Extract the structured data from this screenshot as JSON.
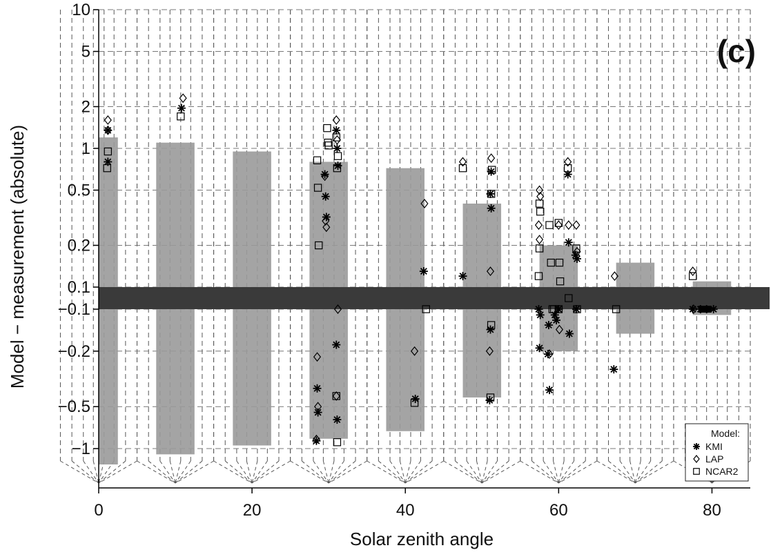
{
  "chart_data": {
    "type": "scatter",
    "panel_label": "(c)",
    "xlabel": "Solar zenith angle",
    "ylabel": "Model − measurement (absolute)",
    "x_range": [
      0,
      85
    ],
    "x_ticks": [
      0,
      20,
      40,
      60,
      80
    ],
    "x_tick_labels": [
      "0",
      "20",
      "40",
      "60",
      "80"
    ],
    "y_scale": "symmetric-log (positive values on top, negative values below; gap between -0.1 and 0.1)",
    "y_ticks_pos": [
      {
        "value": 10,
        "label": "10"
      },
      {
        "value": 5,
        "label": "5"
      },
      {
        "value": 2,
        "label": "2"
      },
      {
        "value": 1,
        "label": "1"
      },
      {
        "value": 0.5,
        "label": "0.5"
      },
      {
        "value": 0.2,
        "label": "0.2"
      },
      {
        "value": 0.1,
        "label": "0.1"
      }
    ],
    "y_ticks_neg": [
      {
        "value": -0.1,
        "label": "−0.1"
      },
      {
        "value": -0.2,
        "label": "−0.2"
      },
      {
        "value": -0.5,
        "label": "−0.5"
      },
      {
        "value": -1,
        "label": "−1"
      }
    ],
    "grid": true,
    "legend": {
      "title": "Model:",
      "placement": "bottom-right",
      "entries": [
        {
          "name": "KMI",
          "marker": "asterisk"
        },
        {
          "name": "LAP",
          "marker": "diamond"
        },
        {
          "name": "NCAR2",
          "marker": "square"
        }
      ]
    },
    "uncertainty_bands": [
      {
        "center": 0,
        "x0": 0,
        "x1": 2.5,
        "pos_top": 1.2,
        "neg_bottom": -1.3
      },
      {
        "center": 10,
        "x0": 7.5,
        "x1": 12.5,
        "pos_top": 1.1,
        "neg_bottom": -1.1
      },
      {
        "center": 20,
        "x0": 17.5,
        "x1": 22.5,
        "pos_top": 0.95,
        "neg_bottom": -0.95
      },
      {
        "center": 30,
        "x0": 27.5,
        "x1": 32.5,
        "pos_top": 0.8,
        "neg_bottom": -0.85
      },
      {
        "center": 40,
        "x0": 37.5,
        "x1": 42.5,
        "pos_top": 0.72,
        "neg_bottom": -0.75
      },
      {
        "center": 50,
        "x0": 47.5,
        "x1": 52.5,
        "pos_top": 0.4,
        "neg_bottom": -0.43
      },
      {
        "center": 60,
        "x0": 57.5,
        "x1": 62.5,
        "pos_top": 0.2,
        "neg_bottom": -0.2
      },
      {
        "center": 70,
        "x0": 67.5,
        "x1": 72.5,
        "pos_top": 0.15,
        "neg_bottom": -0.15
      },
      {
        "center": 80,
        "x0": 77.5,
        "x1": 82.5,
        "pos_top": 0.11,
        "neg_bottom": -0.11
      }
    ],
    "dashed_groups": [
      0,
      10,
      20,
      30,
      40,
      50,
      60,
      70,
      80
    ],
    "series": [
      {
        "name": "KMI",
        "marker": "asterisk",
        "points": [
          [
            1.2,
            1.35
          ],
          [
            1.2,
            0.8
          ],
          [
            10.8,
            1.95
          ],
          [
            28.5,
            -0.37
          ],
          [
            28.6,
            -0.55
          ],
          [
            28.4,
            -0.88
          ],
          [
            29.5,
            0.65
          ],
          [
            29.6,
            0.45
          ],
          [
            29.7,
            0.32
          ],
          [
            31.0,
            1.35
          ],
          [
            31.1,
            1.0
          ],
          [
            31.2,
            0.75
          ],
          [
            31.0,
            -0.18
          ],
          [
            31.1,
            -0.62
          ],
          [
            42.4,
            0.13
          ],
          [
            41.3,
            -0.44
          ],
          [
            47.5,
            0.12
          ],
          [
            51.2,
            0.68
          ],
          [
            51.1,
            0.47
          ],
          [
            51.2,
            0.37
          ],
          [
            51.1,
            -0.14
          ],
          [
            51.0,
            -0.45
          ],
          [
            57.4,
            -0.1
          ],
          [
            57.6,
            -0.11
          ],
          [
            57.5,
            -0.19
          ],
          [
            58.6,
            -0.21
          ],
          [
            58.7,
            -0.13
          ],
          [
            58.8,
            -0.38
          ],
          [
            59.5,
            -0.11
          ],
          [
            59.7,
            -0.12
          ],
          [
            60.0,
            -0.1
          ],
          [
            61.2,
            0.65
          ],
          [
            61.3,
            0.21
          ],
          [
            61.4,
            -0.15
          ],
          [
            62.2,
            0.17
          ],
          [
            62.3,
            -0.1
          ],
          [
            62.4,
            0.16
          ],
          [
            67.2,
            -0.27
          ],
          [
            77.5,
            -0.1
          ],
          [
            78.5,
            -0.1
          ],
          [
            79.3,
            -0.1
          ],
          [
            80.2,
            -0.1
          ]
        ]
      },
      {
        "name": "LAP",
        "marker": "diamond",
        "points": [
          [
            1.2,
            1.6
          ],
          [
            1.2,
            1.35
          ],
          [
            11.0,
            2.3
          ],
          [
            28.5,
            -0.22
          ],
          [
            28.6,
            -0.5
          ],
          [
            28.4,
            -0.86
          ],
          [
            29.5,
            0.63
          ],
          [
            29.6,
            0.3
          ],
          [
            29.7,
            0.27
          ],
          [
            31.0,
            1.6
          ],
          [
            31.1,
            1.15
          ],
          [
            31.2,
            -0.1
          ],
          [
            31.0,
            -0.42
          ],
          [
            42.5,
            0.4
          ],
          [
            41.2,
            -0.2
          ],
          [
            47.5,
            0.8
          ],
          [
            51.2,
            0.85
          ],
          [
            51.1,
            0.13
          ],
          [
            51.0,
            -0.2
          ],
          [
            57.5,
            0.5
          ],
          [
            57.6,
            0.45
          ],
          [
            57.4,
            0.28
          ],
          [
            57.5,
            0.22
          ],
          [
            58.8,
            -0.21
          ],
          [
            60.0,
            0.28
          ],
          [
            60.1,
            -0.14
          ],
          [
            61.2,
            0.8
          ],
          [
            61.3,
            0.28
          ],
          [
            62.3,
            0.28
          ],
          [
            62.4,
            0.18
          ],
          [
            67.3,
            0.12
          ],
          [
            77.5,
            0.13
          ],
          [
            77.6,
            -0.1
          ]
        ]
      },
      {
        "name": "NCAR2",
        "marker": "square",
        "points": [
          [
            1.2,
            0.95
          ],
          [
            1.1,
            0.72
          ],
          [
            10.7,
            1.7
          ],
          [
            28.5,
            0.82
          ],
          [
            28.6,
            0.52
          ],
          [
            28.7,
            0.2
          ],
          [
            29.8,
            1.4
          ],
          [
            29.9,
            1.1
          ],
          [
            30.0,
            1.05
          ],
          [
            31.0,
            1.2
          ],
          [
            31.2,
            0.88
          ],
          [
            31.1,
            0.72
          ],
          [
            31.0,
            -0.42
          ],
          [
            31.1,
            -0.9
          ],
          [
            42.7,
            -0.1
          ],
          [
            41.2,
            -0.47
          ],
          [
            47.5,
            0.72
          ],
          [
            51.3,
            0.7
          ],
          [
            51.2,
            0.47
          ],
          [
            51.2,
            -0.13
          ],
          [
            51.1,
            -0.43
          ],
          [
            57.5,
            0.4
          ],
          [
            57.6,
            0.35
          ],
          [
            57.5,
            0.19
          ],
          [
            57.4,
            0.12
          ],
          [
            58.8,
            0.28
          ],
          [
            59.0,
            0.15
          ],
          [
            59.2,
            -0.1
          ],
          [
            59.4,
            -0.1
          ],
          [
            60.0,
            0.29
          ],
          [
            60.1,
            0.15
          ],
          [
            60.2,
            0.11
          ],
          [
            60.0,
            -0.1
          ],
          [
            61.2,
            0.72
          ],
          [
            61.3,
            0.095
          ],
          [
            62.3,
            0.19
          ],
          [
            62.4,
            -0.1
          ],
          [
            67.5,
            -0.1
          ],
          [
            77.5,
            0.12
          ],
          [
            78.7,
            -0.1
          ],
          [
            79.5,
            -0.1
          ]
        ]
      }
    ]
  }
}
